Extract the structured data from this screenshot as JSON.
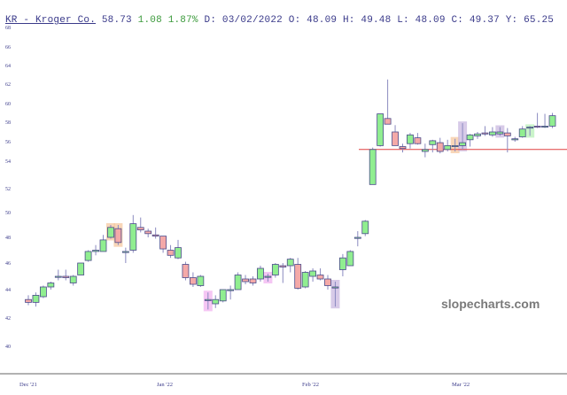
{
  "header": {
    "ticker": "KR - Kroger Co.",
    "last": "58.73",
    "change": "1.08",
    "change_pct": "1.87%",
    "date": "D: 03/02/2022",
    "open": "O: 48.09",
    "high": "H: 49.48",
    "low": "L: 48.09",
    "close": "C: 49.37",
    "y": "Y: 65.25"
  },
  "watermark": "slopecharts.com",
  "colors": {
    "up": "#90ee90",
    "down": "#f4a9a8",
    "outline": "#4a4a8a",
    "hline": "#e04040",
    "axis": "#999999",
    "label": "#3a3a8a",
    "hl_orange": "#f6c8a0",
    "hl_magenta": "#f2b3f0",
    "hl_purple": "#c9b8e0",
    "hl_green": "#b8f0b8"
  },
  "chart_data": {
    "type": "candlestick",
    "title": "KR - Kroger Co.",
    "xlabel": "",
    "ylabel": "",
    "ylim": [
      39,
      68
    ],
    "y_ticks": [
      68,
      66,
      64,
      62,
      60,
      58,
      56,
      54,
      52,
      50,
      48,
      46,
      44,
      42,
      40
    ],
    "x_tick_labels": [
      "Dec '21",
      "Jan '22",
      "Feb '22",
      "Mar '22"
    ],
    "horizontal_line": 55.2,
    "candles": [
      {
        "o": 43.3,
        "h": 43.6,
        "l": 42.9,
        "c": 43.1
      },
      {
        "o": 43.1,
        "h": 43.8,
        "l": 42.8,
        "c": 43.6
      },
      {
        "o": 43.5,
        "h": 44.3,
        "l": 43.4,
        "c": 44.2
      },
      {
        "o": 44.2,
        "h": 44.6,
        "l": 44.0,
        "c": 44.5
      },
      {
        "o": 45.0,
        "h": 45.5,
        "l": 44.7,
        "c": 45.0
      },
      {
        "o": 45.0,
        "h": 45.5,
        "l": 44.7,
        "c": 44.9
      },
      {
        "o": 44.5,
        "h": 45.1,
        "l": 44.3,
        "c": 45.0
      },
      {
        "o": 45.1,
        "h": 46.0,
        "l": 45.1,
        "c": 46.0
      },
      {
        "o": 46.2,
        "h": 47.0,
        "l": 46.1,
        "c": 46.9
      },
      {
        "o": 46.9,
        "h": 47.4,
        "l": 46.6,
        "c": 47.0
      },
      {
        "o": 46.9,
        "h": 48.2,
        "l": 46.9,
        "c": 47.8
      },
      {
        "o": 48.0,
        "h": 49.0,
        "l": 47.9,
        "c": 48.8,
        "hl": "orange"
      },
      {
        "o": 48.7,
        "h": 49.0,
        "l": 47.4,
        "c": 47.6,
        "hl": "orange"
      },
      {
        "o": 46.9,
        "h": 47.2,
        "l": 46.0,
        "c": 46.9
      },
      {
        "o": 47.0,
        "h": 49.8,
        "l": 46.8,
        "c": 49.1
      },
      {
        "o": 48.8,
        "h": 49.6,
        "l": 48.4,
        "c": 48.6
      },
      {
        "o": 48.5,
        "h": 48.7,
        "l": 48.0,
        "c": 48.3
      },
      {
        "o": 48.2,
        "h": 48.8,
        "l": 47.9,
        "c": 48.1
      },
      {
        "o": 48.1,
        "h": 48.1,
        "l": 46.8,
        "c": 47.1
      },
      {
        "o": 47.0,
        "h": 47.4,
        "l": 46.4,
        "c": 46.6
      },
      {
        "o": 46.4,
        "h": 47.8,
        "l": 46.3,
        "c": 47.2
      },
      {
        "o": 45.9,
        "h": 46.1,
        "l": 44.7,
        "c": 44.9
      },
      {
        "o": 44.9,
        "h": 45.3,
        "l": 44.2,
        "c": 44.4
      },
      {
        "o": 44.3,
        "h": 45.1,
        "l": 44.2,
        "c": 45.0
      },
      {
        "o": 43.3,
        "h": 43.8,
        "l": 42.6,
        "c": 43.3,
        "hl": "magenta"
      },
      {
        "o": 43.0,
        "h": 43.6,
        "l": 42.7,
        "c": 43.3
      },
      {
        "o": 43.2,
        "h": 44.0,
        "l": 43.1,
        "c": 44.0
      },
      {
        "o": 44.0,
        "h": 44.3,
        "l": 43.3,
        "c": 44.0
      },
      {
        "o": 44.0,
        "h": 45.3,
        "l": 44.0,
        "c": 45.1
      },
      {
        "o": 44.8,
        "h": 45.1,
        "l": 44.4,
        "c": 44.6
      },
      {
        "o": 44.8,
        "h": 45.0,
        "l": 44.3,
        "c": 44.5
      },
      {
        "o": 44.8,
        "h": 45.8,
        "l": 44.6,
        "c": 45.6
      },
      {
        "o": 45.0,
        "h": 45.2,
        "l": 44.6,
        "c": 45.0,
        "hl": "magenta"
      },
      {
        "o": 45.1,
        "h": 46.0,
        "l": 44.9,
        "c": 45.9
      },
      {
        "o": 45.8,
        "h": 46.0,
        "l": 44.5,
        "c": 45.7
      },
      {
        "o": 45.8,
        "h": 46.4,
        "l": 45.3,
        "c": 46.3
      },
      {
        "o": 45.9,
        "h": 46.4,
        "l": 44.0,
        "c": 44.1
      },
      {
        "o": 44.2,
        "h": 45.4,
        "l": 44.1,
        "c": 45.3
      },
      {
        "o": 45.0,
        "h": 45.6,
        "l": 44.6,
        "c": 45.4
      },
      {
        "o": 45.1,
        "h": 45.6,
        "l": 44.7,
        "c": 44.8
      },
      {
        "o": 44.8,
        "h": 45.1,
        "l": 44.0,
        "c": 44.3
      },
      {
        "o": 44.2,
        "h": 44.6,
        "l": 42.8,
        "c": 44.2,
        "hl": "purple"
      },
      {
        "o": 45.5,
        "h": 46.7,
        "l": 45.0,
        "c": 46.4
      },
      {
        "o": 45.8,
        "h": 47.0,
        "l": 45.8,
        "c": 46.9
      },
      {
        "o": 48.0,
        "h": 48.5,
        "l": 47.3,
        "c": 48.0
      },
      {
        "o": 48.3,
        "h": 49.4,
        "l": 48.1,
        "c": 49.3
      },
      {
        "o": 52.3,
        "h": 55.4,
        "l": 52.3,
        "c": 55.2
      },
      {
        "o": 55.6,
        "h": 58.9,
        "l": 55.5,
        "c": 58.9
      },
      {
        "o": 58.4,
        "h": 62.5,
        "l": 57.8,
        "c": 57.8
      },
      {
        "o": 57.0,
        "h": 57.7,
        "l": 55.6,
        "c": 55.6
      },
      {
        "o": 55.5,
        "h": 55.8,
        "l": 54.9,
        "c": 55.3
      },
      {
        "o": 55.8,
        "h": 56.9,
        "l": 55.3,
        "c": 56.7
      },
      {
        "o": 56.4,
        "h": 56.9,
        "l": 55.7,
        "c": 55.8
      },
      {
        "o": 55.0,
        "h": 55.8,
        "l": 54.4,
        "c": 55.2
      },
      {
        "o": 55.7,
        "h": 56.2,
        "l": 54.9,
        "c": 56.1
      },
      {
        "o": 55.9,
        "h": 56.4,
        "l": 54.8,
        "c": 55.0
      },
      {
        "o": 55.2,
        "h": 56.2,
        "l": 55.0,
        "c": 55.6
      },
      {
        "o": 55.5,
        "h": 56.3,
        "l": 55.0,
        "c": 55.6,
        "hl": "orange"
      },
      {
        "o": 55.6,
        "h": 57.9,
        "l": 55.2,
        "c": 55.9,
        "hl": "purple"
      },
      {
        "o": 56.2,
        "h": 56.8,
        "l": 55.5,
        "c": 56.7
      },
      {
        "o": 56.6,
        "h": 57.0,
        "l": 56.3,
        "c": 56.8
      },
      {
        "o": 56.9,
        "h": 57.6,
        "l": 56.6,
        "c": 56.8
      },
      {
        "o": 56.7,
        "h": 57.5,
        "l": 56.5,
        "c": 57.0
      },
      {
        "o": 56.8,
        "h": 57.5,
        "l": 56.6,
        "c": 57.0,
        "hl": "purple"
      },
      {
        "o": 56.9,
        "h": 57.4,
        "l": 54.9,
        "c": 56.6
      },
      {
        "o": 56.3,
        "h": 56.5,
        "l": 56.0,
        "c": 56.3
      },
      {
        "o": 56.5,
        "h": 57.6,
        "l": 56.4,
        "c": 57.3
      },
      {
        "o": 57.4,
        "h": 57.6,
        "l": 56.6,
        "c": 57.5,
        "hl": "green"
      },
      {
        "o": 57.6,
        "h": 59.0,
        "l": 57.4,
        "c": 57.5
      },
      {
        "o": 57.5,
        "h": 58.9,
        "l": 57.4,
        "c": 57.6
      },
      {
        "o": 57.6,
        "h": 59.0,
        "l": 57.4,
        "c": 58.7
      }
    ]
  }
}
